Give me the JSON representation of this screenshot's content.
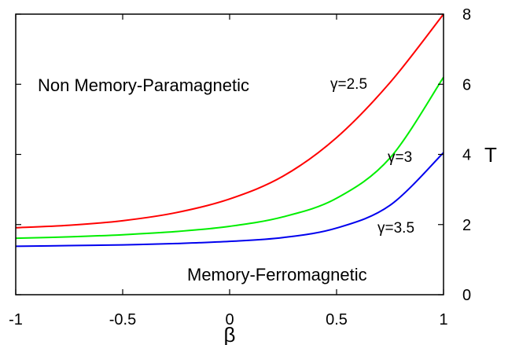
{
  "chart_data": {
    "type": "line",
    "title": "",
    "xlabel": "β",
    "ylabel": "T",
    "xlim": [
      -1,
      1
    ],
    "ylim": [
      0,
      8
    ],
    "x_ticks": [
      -1,
      -0.5,
      0,
      0.5,
      1
    ],
    "x_tick_labels": [
      "-1",
      "-0.5",
      "0",
      "0.5",
      "1"
    ],
    "y_ticks": [
      0,
      2,
      4,
      6,
      8
    ],
    "y_tick_labels": [
      "0",
      "2",
      "4",
      "6",
      "8"
    ],
    "y_axis_side": "right",
    "grid": false,
    "legend": "none (curves labeled inline)",
    "x": [
      -1,
      -0.75,
      -0.5,
      -0.25,
      0,
      0.25,
      0.5,
      0.75,
      1
    ],
    "series": [
      {
        "label": "γ=2.5",
        "color": "#ff0000",
        "values": [
          1.91,
          1.98,
          2.11,
          2.34,
          2.73,
          3.38,
          4.48,
          6.05,
          8.0
        ]
      },
      {
        "label": "γ=3",
        "color": "#00ee00",
        "values": [
          1.61,
          1.65,
          1.71,
          1.8,
          1.95,
          2.22,
          2.75,
          3.9,
          6.2
        ]
      },
      {
        "label": "γ=3.5",
        "color": "#0000ee",
        "values": [
          1.38,
          1.4,
          1.42,
          1.46,
          1.52,
          1.63,
          1.9,
          2.55,
          4.05
        ]
      }
    ],
    "annotations": [
      "Non Memory-Paramagnetic",
      "Memory-Ferromagnetic"
    ]
  }
}
